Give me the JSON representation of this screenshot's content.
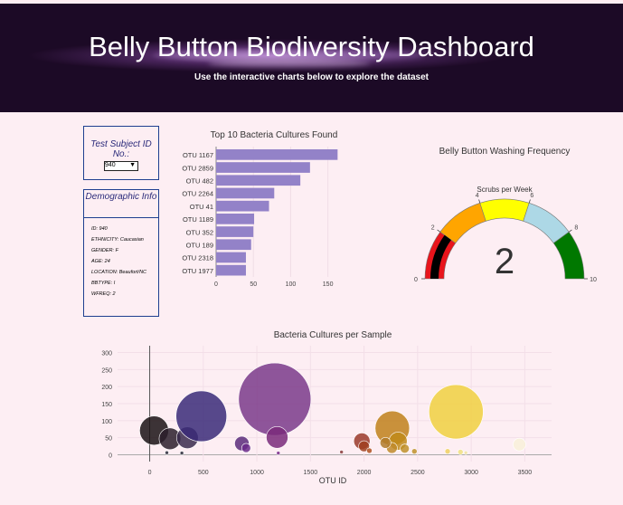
{
  "header": {
    "title": "Belly Button Biodiversity Dashboard",
    "subtitle": "Use the interactive charts below to explore the dataset"
  },
  "selector": {
    "label": "Test Subject ID No.:",
    "selected": "940"
  },
  "demographic": {
    "title": "Demographic Info",
    "items": [
      "ID: 940",
      "ETHNICITY: Caucasian",
      "GENDER: F",
      "AGE: 24",
      "LOCATION: Beaufort/NC",
      "BBTYPE: I",
      "WFREQ: 2"
    ]
  },
  "colors": {
    "bar": "#9382c8",
    "header_bg": "#0c060f",
    "page_bg": "#fdeef3"
  },
  "chart_data": [
    {
      "type": "bar",
      "orientation": "horizontal",
      "title": "Top 10 Bacteria Cultures Found",
      "categories": [
        "OTU 1167",
        "OTU 2859",
        "OTU 482",
        "OTU 2264",
        "OTU 41",
        "OTU 1189",
        "OTU 352",
        "OTU 189",
        "OTU 2318",
        "OTU 1977"
      ],
      "values": [
        163,
        126,
        113,
        78,
        71,
        51,
        50,
        47,
        40,
        40
      ],
      "xlim": [
        0,
        165
      ],
      "xticks": [
        0,
        50,
        100,
        150
      ]
    },
    {
      "type": "gauge",
      "title": "Belly Button Washing Frequency",
      "subtitle": "Scrubs per Week",
      "value": 2,
      "range": [
        0,
        10
      ],
      "ticks": [
        0,
        2,
        4,
        6,
        8,
        10
      ],
      "steps": [
        {
          "range": [
            0,
            2
          ],
          "color": "#e8141b"
        },
        {
          "range": [
            2,
            4
          ],
          "color": "#ffa500"
        },
        {
          "range": [
            4,
            6
          ],
          "color": "#ffff00"
        },
        {
          "range": [
            6,
            8
          ],
          "color": "#add8e6"
        },
        {
          "range": [
            8,
            10
          ],
          "color": "#007800"
        }
      ],
      "bar_color": "#000000"
    },
    {
      "type": "scatter",
      "title": "Bacteria Cultures per Sample",
      "xlabel": "OTU ID",
      "xlim": [
        -300,
        3750
      ],
      "ylim": [
        -20,
        320
      ],
      "xticks": [
        0,
        500,
        1000,
        1500,
        2000,
        2500,
        3000,
        3500
      ],
      "yticks": [
        0,
        50,
        100,
        150,
        200,
        250,
        300
      ],
      "points": [
        {
          "x": 41,
          "y": 71,
          "r": 16,
          "color": "#1a1214"
        },
        {
          "x": 189,
          "y": 47,
          "r": 12,
          "color": "#2c1e2c"
        },
        {
          "x": 352,
          "y": 50,
          "r": 12,
          "color": "#3a2a4c"
        },
        {
          "x": 482,
          "y": 113,
          "r": 28,
          "color": "#3a2a78"
        },
        {
          "x": 300,
          "y": 5,
          "r": 2,
          "color": "#2a2a3a"
        },
        {
          "x": 160,
          "y": 6,
          "r": 2,
          "color": "#2a2a3a"
        },
        {
          "x": 860,
          "y": 33,
          "r": 8,
          "color": "#5a2a7a"
        },
        {
          "x": 900,
          "y": 20,
          "r": 5,
          "color": "#6a2a8a"
        },
        {
          "x": 1167,
          "y": 163,
          "r": 40,
          "color": "#7a3a8a"
        },
        {
          "x": 1189,
          "y": 51,
          "r": 12,
          "color": "#7a2a7a"
        },
        {
          "x": 1200,
          "y": 5,
          "r": 2,
          "color": "#7a2a8a"
        },
        {
          "x": 1790,
          "y": 8,
          "r": 2,
          "color": "#8a3a3a"
        },
        {
          "x": 1980,
          "y": 40,
          "r": 9,
          "color": "#9a3a2a"
        },
        {
          "x": 2000,
          "y": 25,
          "r": 6,
          "color": "#a04020"
        },
        {
          "x": 2050,
          "y": 12,
          "r": 3,
          "color": "#b05020"
        },
        {
          "x": 2264,
          "y": 78,
          "r": 19,
          "color": "#c0801a"
        },
        {
          "x": 2318,
          "y": 40,
          "r": 10,
          "color": "#c08a1a"
        },
        {
          "x": 2260,
          "y": 20,
          "r": 6,
          "color": "#c08a2a"
        },
        {
          "x": 2200,
          "y": 35,
          "r": 6,
          "color": "#b07a2a"
        },
        {
          "x": 2380,
          "y": 18,
          "r": 5,
          "color": "#c0902a"
        },
        {
          "x": 2470,
          "y": 10,
          "r": 3,
          "color": "#c0902a"
        },
        {
          "x": 2859,
          "y": 126,
          "r": 30,
          "color": "#f0d040"
        },
        {
          "x": 2780,
          "y": 10,
          "r": 3,
          "color": "#f0d060"
        },
        {
          "x": 2900,
          "y": 8,
          "r": 3,
          "color": "#f0e080"
        },
        {
          "x": 2950,
          "y": 6,
          "r": 2,
          "color": "#f0e0a0"
        },
        {
          "x": 3450,
          "y": 30,
          "r": 7,
          "color": "#f8f0d8"
        }
      ]
    }
  ]
}
